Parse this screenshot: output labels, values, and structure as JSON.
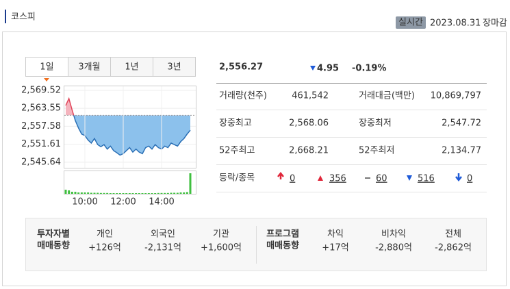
{
  "header": {
    "title": "코스피",
    "badge": "실시간",
    "date": "2023.08.31",
    "status": "장마감"
  },
  "tabs": [
    "1일",
    "3개월",
    "1년",
    "3년"
  ],
  "quote": {
    "price": "2,556.27",
    "change": "4.95",
    "change_pct": "-0.19%"
  },
  "stats": {
    "rows": [
      [
        "거래량(천주)",
        "461,542",
        "거래대금(백만)",
        "10,869,797"
      ],
      [
        "장중최고",
        "2,568.06",
        "장중최저",
        "2,547.72"
      ],
      [
        "52주최고",
        "2,668.21",
        "52주최저",
        "2,134.77"
      ]
    ]
  },
  "breadth": {
    "label": "등락/종목",
    "items": [
      "0",
      "356",
      "60",
      "516",
      "0"
    ]
  },
  "investors": {
    "title": [
      "투자자별",
      "매매동향"
    ],
    "items": [
      {
        "name": "개인",
        "value": "+126억"
      },
      {
        "name": "외국인",
        "value": "-2,131억"
      },
      {
        "name": "기관",
        "value": "+1,600억"
      }
    ]
  },
  "program": {
    "title": [
      "프로그램",
      "매매동향"
    ],
    "items": [
      {
        "name": "차익",
        "value": "+17억"
      },
      {
        "name": "비차익",
        "value": "-2,880억"
      },
      {
        "name": "전체",
        "value": "-2,862억"
      }
    ]
  },
  "chart_data": {
    "type": "line",
    "x": [
      "09:00",
      "09:10",
      "09:20",
      "09:30",
      "09:40",
      "09:50",
      "10:00",
      "10:10",
      "10:20",
      "10:30",
      "10:40",
      "10:50",
      "11:00",
      "11:10",
      "11:20",
      "11:30",
      "11:40",
      "11:50",
      "12:00",
      "12:10",
      "12:20",
      "12:30",
      "12:40",
      "12:50",
      "13:00",
      "13:10",
      "13:20",
      "13:30",
      "13:40",
      "13:50",
      "14:00",
      "14:10",
      "14:20",
      "14:30",
      "14:40",
      "14:50",
      "15:00",
      "15:10",
      "15:20",
      "15:30"
    ],
    "series": [
      {
        "values": [
          2564.5,
          2566.8,
          2563.0,
          2559.5,
          2557.0,
          2555.0,
          2554.5,
          2553.0,
          2552.0,
          2553.5,
          2551.5,
          2550.8,
          2551.5,
          2550.0,
          2551.0,
          2549.5,
          2548.8,
          2548.0,
          2548.5,
          2549.5,
          2550.5,
          2549.0,
          2550.0,
          2549.0,
          2548.5,
          2550.5,
          2551.0,
          2550.0,
          2551.5,
          2550.5,
          2550.0,
          2551.0,
          2550.5,
          2552.0,
          2551.5,
          2551.0,
          2552.5,
          2553.5,
          2555.0,
          2556.27
        ],
        "up_color": "#e0455a",
        "down_color": "#2a6fb5"
      }
    ],
    "base": 2561.22,
    "volume": {
      "color": "#3fbf3f",
      "values": [
        6,
        5,
        3,
        3,
        2,
        2,
        2,
        2,
        1.5,
        1.5,
        1.5,
        1.2,
        1.2,
        1.2,
        1,
        1,
        1,
        1,
        1,
        1,
        1,
        1,
        1,
        1,
        1,
        1,
        1,
        1,
        1,
        1.2,
        1.2,
        1.2,
        1.2,
        1.5,
        1.5,
        1.5,
        2,
        2,
        2.5,
        30
      ]
    },
    "xlim": [
      "09:00",
      "15:30"
    ],
    "xticks": [
      "10:00",
      "12:00",
      "14:00"
    ],
    "ylim": [
      2543.8,
      2571.1
    ],
    "yticks": [
      {
        "value": 2569.52,
        "label": "2,569.52"
      },
      {
        "value": 2563.55,
        "label": "2,563.55"
      },
      {
        "value": 2557.58,
        "label": "2,557.58"
      },
      {
        "value": 2551.61,
        "label": "2,551.61"
      },
      {
        "value": 2545.64,
        "label": "2,545.64"
      }
    ],
    "grid": true
  }
}
